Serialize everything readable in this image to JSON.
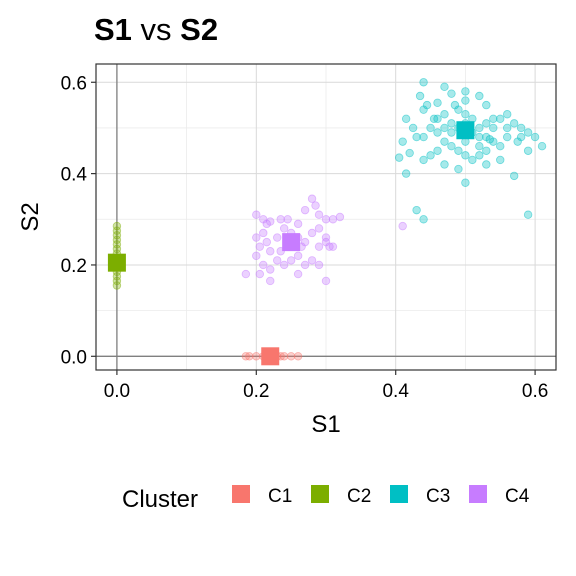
{
  "chart_data": {
    "type": "scatter",
    "title_parts": [
      {
        "text": "S1",
        "bold": true
      },
      {
        "text": " vs ",
        "bold": false
      },
      {
        "text": "S2",
        "bold": true
      }
    ],
    "xlabel": "S1",
    "ylabel": "S2",
    "xlim": [
      -0.03,
      0.63
    ],
    "ylim": [
      -0.03,
      0.64
    ],
    "xticks": [
      "0.0",
      "0.2",
      "0.4",
      "0.6"
    ],
    "yticks": [
      "0.0",
      "0.2",
      "0.4",
      "0.6"
    ],
    "grid": true,
    "legend": {
      "title": "Cluster",
      "position": "bottom"
    },
    "series": [
      {
        "name": "C1",
        "color": "#F8766D",
        "centroid": [
          0.22,
          0.0
        ],
        "points": [
          [
            0.185,
            0.0
          ],
          [
            0.19,
            0.0
          ],
          [
            0.2,
            0.0
          ],
          [
            0.21,
            0.0
          ],
          [
            0.215,
            0.0
          ],
          [
            0.22,
            0.0
          ],
          [
            0.225,
            0.0
          ],
          [
            0.23,
            0.0
          ],
          [
            0.235,
            0.0
          ],
          [
            0.24,
            0.0
          ],
          [
            0.25,
            0.0
          ],
          [
            0.26,
            0.0
          ]
        ]
      },
      {
        "name": "C2",
        "color": "#7CAE00",
        "centroid": [
          0.0,
          0.205
        ],
        "points": [
          [
            0.0,
            0.285
          ],
          [
            0.0,
            0.275
          ],
          [
            0.0,
            0.265
          ],
          [
            0.0,
            0.255
          ],
          [
            0.0,
            0.245
          ],
          [
            0.0,
            0.235
          ],
          [
            0.0,
            0.225
          ],
          [
            0.0,
            0.215
          ],
          [
            0.0,
            0.205
          ],
          [
            0.0,
            0.195
          ],
          [
            0.0,
            0.185
          ],
          [
            0.0,
            0.175
          ],
          [
            0.0,
            0.165
          ],
          [
            0.0,
            0.155
          ]
        ]
      },
      {
        "name": "C3",
        "color": "#00BFC4",
        "centroid": [
          0.5,
          0.495
        ],
        "points": [
          [
            0.44,
            0.6
          ],
          [
            0.435,
            0.57
          ],
          [
            0.47,
            0.59
          ],
          [
            0.48,
            0.575
          ],
          [
            0.5,
            0.58
          ],
          [
            0.52,
            0.57
          ],
          [
            0.46,
            0.555
          ],
          [
            0.44,
            0.54
          ],
          [
            0.415,
            0.52
          ],
          [
            0.425,
            0.5
          ],
          [
            0.43,
            0.48
          ],
          [
            0.41,
            0.47
          ],
          [
            0.405,
            0.435
          ],
          [
            0.42,
            0.445
          ],
          [
            0.415,
            0.4
          ],
          [
            0.44,
            0.48
          ],
          [
            0.45,
            0.5
          ],
          [
            0.46,
            0.52
          ],
          [
            0.47,
            0.53
          ],
          [
            0.48,
            0.51
          ],
          [
            0.49,
            0.54
          ],
          [
            0.5,
            0.53
          ],
          [
            0.51,
            0.52
          ],
          [
            0.52,
            0.5
          ],
          [
            0.53,
            0.51
          ],
          [
            0.54,
            0.5
          ],
          [
            0.55,
            0.52
          ],
          [
            0.56,
            0.53
          ],
          [
            0.57,
            0.51
          ],
          [
            0.58,
            0.5
          ],
          [
            0.59,
            0.49
          ],
          [
            0.6,
            0.48
          ],
          [
            0.61,
            0.46
          ],
          [
            0.59,
            0.45
          ],
          [
            0.575,
            0.47
          ],
          [
            0.56,
            0.48
          ],
          [
            0.55,
            0.46
          ],
          [
            0.54,
            0.47
          ],
          [
            0.53,
            0.45
          ],
          [
            0.52,
            0.44
          ],
          [
            0.51,
            0.43
          ],
          [
            0.5,
            0.44
          ],
          [
            0.49,
            0.45
          ],
          [
            0.48,
            0.46
          ],
          [
            0.47,
            0.47
          ],
          [
            0.46,
            0.45
          ],
          [
            0.45,
            0.44
          ],
          [
            0.44,
            0.43
          ],
          [
            0.47,
            0.42
          ],
          [
            0.49,
            0.41
          ],
          [
            0.5,
            0.38
          ],
          [
            0.53,
            0.42
          ],
          [
            0.55,
            0.43
          ],
          [
            0.57,
            0.395
          ],
          [
            0.52,
            0.46
          ],
          [
            0.53,
            0.48
          ],
          [
            0.535,
            0.475
          ],
          [
            0.5,
            0.47
          ],
          [
            0.51,
            0.49
          ],
          [
            0.48,
            0.49
          ],
          [
            0.46,
            0.49
          ],
          [
            0.47,
            0.5
          ],
          [
            0.49,
            0.5
          ],
          [
            0.52,
            0.48
          ],
          [
            0.54,
            0.52
          ],
          [
            0.56,
            0.5
          ],
          [
            0.58,
            0.48
          ],
          [
            0.5,
            0.51
          ],
          [
            0.455,
            0.52
          ],
          [
            0.445,
            0.55
          ],
          [
            0.43,
            0.32
          ],
          [
            0.44,
            0.3
          ],
          [
            0.59,
            0.31
          ],
          [
            0.53,
            0.55
          ],
          [
            0.5,
            0.56
          ],
          [
            0.485,
            0.55
          ]
        ]
      },
      {
        "name": "C4",
        "color": "#C77CFF",
        "centroid": [
          0.25,
          0.25
        ],
        "points": [
          [
            0.2,
            0.31
          ],
          [
            0.21,
            0.3
          ],
          [
            0.22,
            0.295
          ],
          [
            0.235,
            0.3
          ],
          [
            0.245,
            0.3
          ],
          [
            0.26,
            0.29
          ],
          [
            0.27,
            0.32
          ],
          [
            0.28,
            0.345
          ],
          [
            0.285,
            0.33
          ],
          [
            0.29,
            0.31
          ],
          [
            0.3,
            0.3
          ],
          [
            0.31,
            0.3
          ],
          [
            0.32,
            0.305
          ],
          [
            0.21,
            0.27
          ],
          [
            0.2,
            0.26
          ],
          [
            0.205,
            0.24
          ],
          [
            0.215,
            0.25
          ],
          [
            0.22,
            0.23
          ],
          [
            0.23,
            0.26
          ],
          [
            0.24,
            0.28
          ],
          [
            0.25,
            0.27
          ],
          [
            0.26,
            0.26
          ],
          [
            0.27,
            0.25
          ],
          [
            0.28,
            0.27
          ],
          [
            0.29,
            0.28
          ],
          [
            0.3,
            0.26
          ],
          [
            0.305,
            0.24
          ],
          [
            0.31,
            0.24
          ],
          [
            0.29,
            0.24
          ],
          [
            0.3,
            0.25
          ],
          [
            0.2,
            0.22
          ],
          [
            0.21,
            0.2
          ],
          [
            0.22,
            0.19
          ],
          [
            0.23,
            0.21
          ],
          [
            0.24,
            0.2
          ],
          [
            0.25,
            0.21
          ],
          [
            0.26,
            0.22
          ],
          [
            0.27,
            0.2
          ],
          [
            0.28,
            0.21
          ],
          [
            0.29,
            0.2
          ],
          [
            0.185,
            0.18
          ],
          [
            0.205,
            0.18
          ],
          [
            0.22,
            0.165
          ],
          [
            0.26,
            0.18
          ],
          [
            0.3,
            0.165
          ],
          [
            0.215,
            0.29
          ],
          [
            0.255,
            0.24
          ],
          [
            0.265,
            0.24
          ],
          [
            0.235,
            0.23
          ],
          [
            0.41,
            0.285
          ]
        ]
      }
    ]
  }
}
